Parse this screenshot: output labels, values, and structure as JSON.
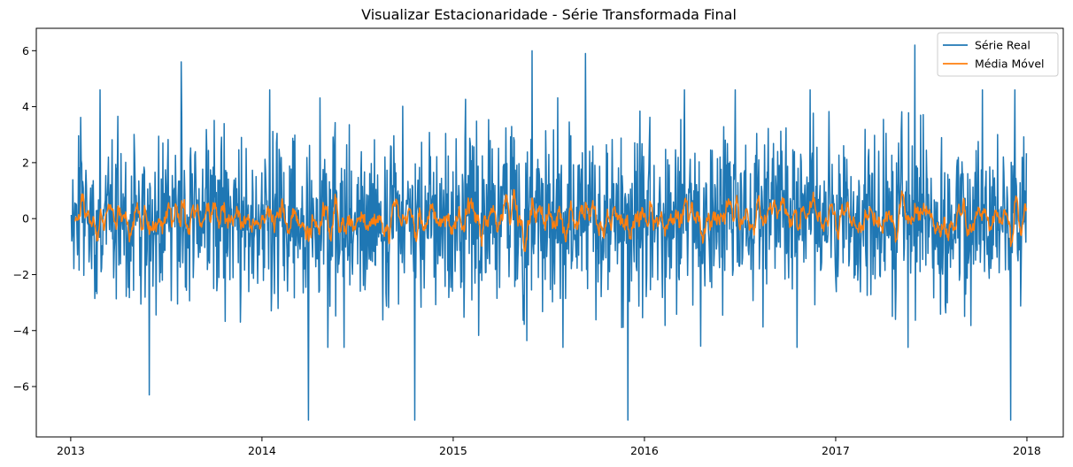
{
  "chart_data": {
    "type": "line",
    "title": "Visualizar Estacionaridade - Série Transformada Final",
    "xlabel": "",
    "ylabel": "",
    "x_range": [
      "2012-10-26",
      "2018-03-10"
    ],
    "xlim_years": [
      2012.82,
      2018.19
    ],
    "ylim": [
      -7.8,
      6.8
    ],
    "x_ticks": [
      "2013",
      "2014",
      "2015",
      "2016",
      "2017",
      "2018"
    ],
    "y_ticks": [
      "−6",
      "−4",
      "−2",
      "0",
      "2",
      "4",
      "6"
    ],
    "legend_position": "top-right",
    "grid": false,
    "series": [
      {
        "name": "Série Real",
        "color": "#1f77b4",
        "x_start": "2013-01-02",
        "x_end": "2017-12-31",
        "frequency": "daily",
        "points_estimated": 1825,
        "typical_range": [
          -4,
          4
        ],
        "extremes": [
          {
            "x": "2013-05-31",
            "y": -6.3
          },
          {
            "x": "2013-07-31",
            "y": 5.6
          },
          {
            "x": "2014-03-31",
            "y": -7.2
          },
          {
            "x": "2014-10-20",
            "y": -7.2
          },
          {
            "x": "2015-06-01",
            "y": 6.0
          },
          {
            "x": "2015-09-10",
            "y": 5.9
          },
          {
            "x": "2015-11-30",
            "y": -7.2
          },
          {
            "x": "2017-06-01",
            "y": 6.2
          },
          {
            "x": "2017-12-01",
            "y": -7.2
          }
        ]
      },
      {
        "name": "Média Móvel",
        "color": "#ff7f0e",
        "x_start": "2013-01-08",
        "x_end": "2017-12-31",
        "typical_range": [
          -0.5,
          0.5
        ],
        "level": 0.0
      }
    ]
  }
}
